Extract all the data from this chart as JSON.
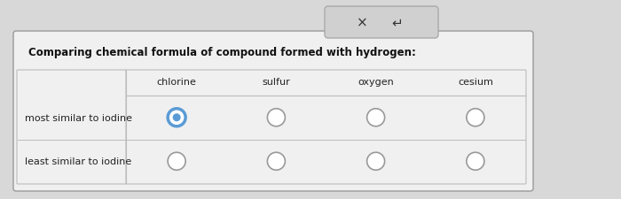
{
  "title": "Comparing chemical formula of compound formed with hydrogen:",
  "columns": [
    "chlorine",
    "sulfur",
    "oxygen",
    "cesium"
  ],
  "rows": [
    "most similar to iodine",
    "least similar to iodine"
  ],
  "selected_cell": [
    0,
    0
  ],
  "bg_color": "#d8d8d8",
  "table_bg": "#f0f0f0",
  "outer_box_edge": "#999999",
  "inner_line_color": "#bbbbbb",
  "title_fontsize": 8.5,
  "col_fontsize": 8.0,
  "row_fontsize": 8.0,
  "selected_color": "#5b9bd5",
  "unselected_edge": "#999999",
  "button_bg": "#d0d0d0",
  "button_border": "#aaaaaa",
  "radio_size": 10,
  "selected_lw": 2.5,
  "unselected_lw": 1.2
}
